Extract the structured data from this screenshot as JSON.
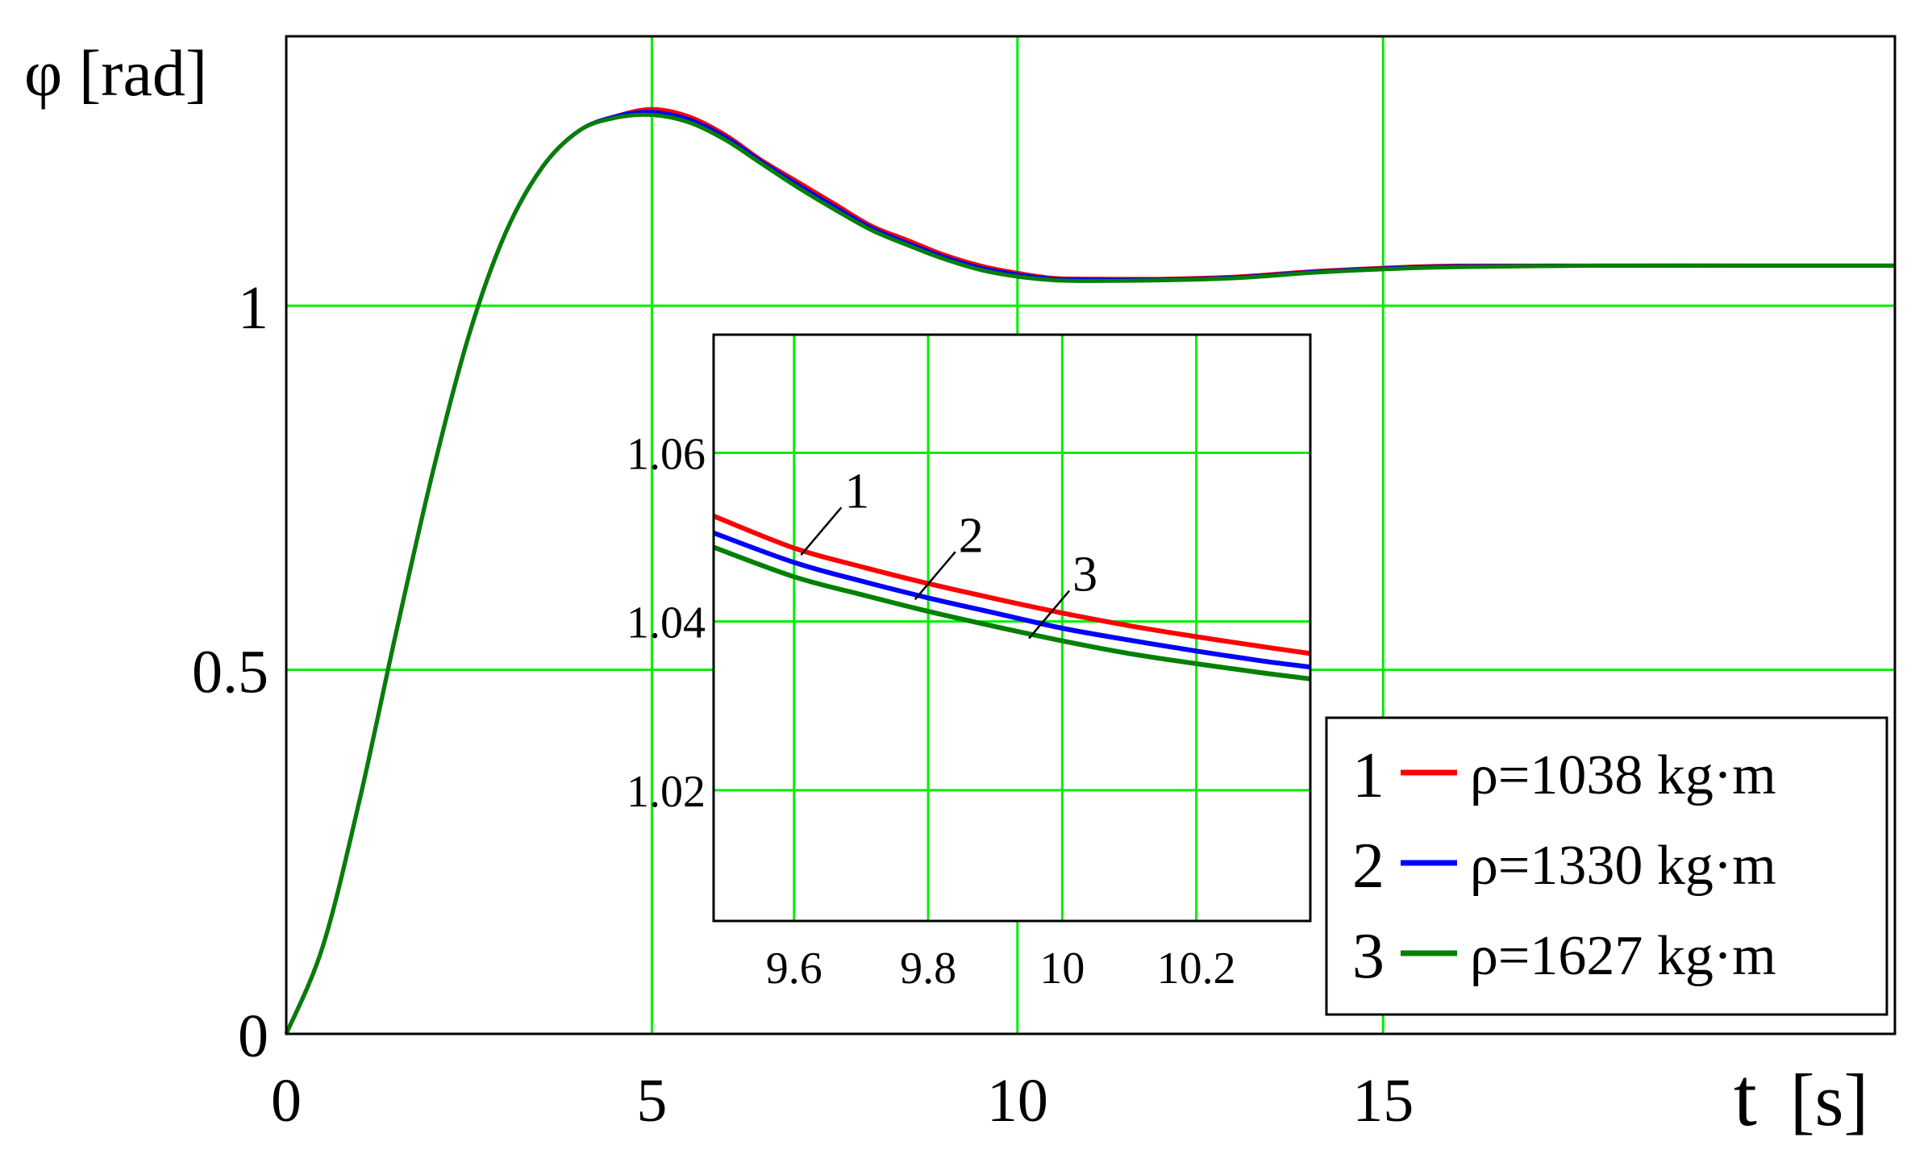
{
  "chart_data": [
    {
      "type": "line",
      "title": "",
      "ylabel": "φ [rad]",
      "xlabel_var": "t",
      "xlabel_unit": "[s]",
      "xlim": [
        0,
        22
      ],
      "ylim": [
        0,
        1.37
      ],
      "grid": true,
      "x_ticks": [
        0,
        5,
        10,
        15
      ],
      "y_ticks": [
        0,
        0.5,
        1
      ],
      "x_tick_labels": [
        "0",
        "5",
        "10",
        "15"
      ],
      "y_tick_labels": [
        "0",
        "0.5",
        "1"
      ],
      "legend_position": "bottom-right",
      "x": [
        0,
        0.5,
        1,
        1.5,
        2,
        2.5,
        3,
        3.5,
        4,
        4.5,
        5,
        5.5,
        6,
        6.5,
        7,
        7.5,
        8,
        8.5,
        9,
        9.5,
        10,
        10.5,
        11,
        12,
        13,
        14,
        15,
        16,
        18,
        20,
        22
      ],
      "series": [
        {
          "name": "ρ=1038 kg·m",
          "number": "1",
          "color": "#ff0000",
          "values": [
            0,
            0.12,
            0.32,
            0.55,
            0.77,
            0.96,
            1.1,
            1.19,
            1.24,
            1.26,
            1.27,
            1.26,
            1.235,
            1.2,
            1.17,
            1.14,
            1.11,
            1.09,
            1.07,
            1.055,
            1.045,
            1.038,
            1.037,
            1.037,
            1.04,
            1.047,
            1.052,
            1.055,
            1.055,
            1.055,
            1.055
          ]
        },
        {
          "name": "ρ=1330 kg·m",
          "number": "2",
          "color": "#0000ff",
          "values": [
            0,
            0.12,
            0.32,
            0.55,
            0.77,
            0.96,
            1.1,
            1.19,
            1.24,
            1.26,
            1.266,
            1.256,
            1.232,
            1.198,
            1.166,
            1.136,
            1.107,
            1.086,
            1.067,
            1.052,
            1.043,
            1.037,
            1.036,
            1.036,
            1.039,
            1.046,
            1.051,
            1.054,
            1.055,
            1.055,
            1.055
          ]
        },
        {
          "name": "ρ=1627 kg·m",
          "number": "3",
          "color": "#008000",
          "values": [
            0,
            0.12,
            0.32,
            0.55,
            0.77,
            0.96,
            1.1,
            1.19,
            1.24,
            1.258,
            1.262,
            1.252,
            1.228,
            1.195,
            1.162,
            1.132,
            1.104,
            1.083,
            1.064,
            1.049,
            1.04,
            1.035,
            1.034,
            1.035,
            1.038,
            1.045,
            1.05,
            1.053,
            1.055,
            1.055,
            1.055
          ]
        }
      ]
    },
    {
      "type": "line",
      "title": "",
      "xlim": [
        9.48,
        10.37
      ],
      "ylim": [
        1.0045,
        1.074
      ],
      "grid": true,
      "x_ticks": [
        9.6,
        9.8,
        10,
        10.2
      ],
      "y_ticks": [
        1.02,
        1.04,
        1.06
      ],
      "x_tick_labels": [
        "9.6",
        "9.8",
        "10",
        "10.2"
      ],
      "y_tick_labels": [
        "1.02",
        "1.04",
        "1.06"
      ],
      "x": [
        9.48,
        9.6,
        9.7,
        9.8,
        9.9,
        10.0,
        10.1,
        10.2,
        10.3,
        10.37
      ],
      "series": [
        {
          "name": "1",
          "color": "#ff0000",
          "values": [
            1.0525,
            1.0487,
            1.0465,
            1.0445,
            1.0427,
            1.041,
            1.0395,
            1.0382,
            1.037,
            1.0362
          ]
        },
        {
          "name": "2",
          "color": "#0000ff",
          "values": [
            1.0505,
            1.047,
            1.0448,
            1.0428,
            1.041,
            1.0392,
            1.0378,
            1.0365,
            1.0353,
            1.0346
          ]
        },
        {
          "name": "3",
          "color": "#008000",
          "values": [
            1.0488,
            1.0453,
            1.0432,
            1.0412,
            1.0394,
            1.0377,
            1.0362,
            1.035,
            1.0339,
            1.0332
          ]
        }
      ],
      "annotations": [
        "1",
        "2",
        "3"
      ]
    }
  ]
}
